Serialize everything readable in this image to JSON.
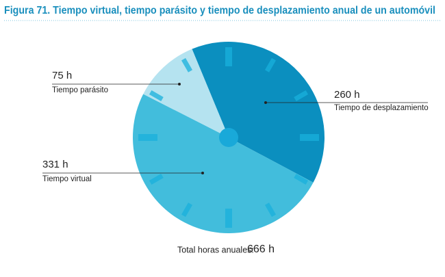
{
  "chart_data": {
    "type": "pie",
    "title": "Figura 71. Tiempo virtual, tiempo parásito y tiempo de desplazamiento anual de un automóvil",
    "categories": [
      "Tiempo de desplazamiento",
      "Tiempo virtual",
      "Tiempo parásito"
    ],
    "values": [
      260,
      331,
      75
    ],
    "value_labels": [
      "260 h",
      "331 h",
      "75 h"
    ],
    "colors": [
      "#0b8fbf",
      "#42bddc",
      "#b5e3f0"
    ],
    "total_label": "Total horas anuales:",
    "total": "666 h"
  }
}
